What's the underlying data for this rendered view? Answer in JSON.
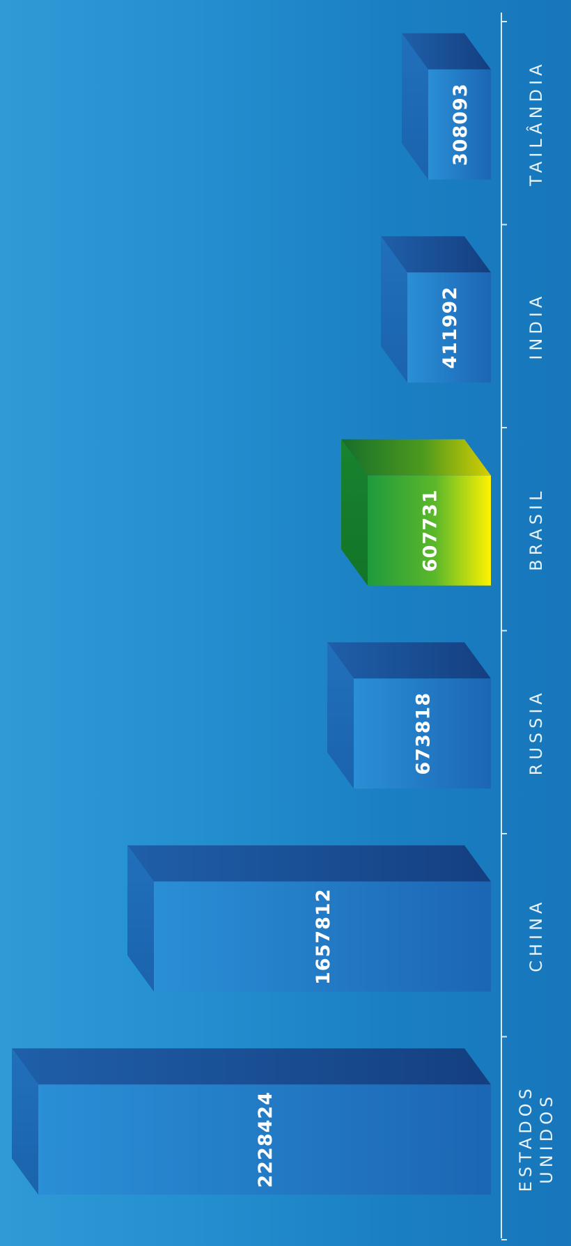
{
  "chart_data": {
    "type": "bar",
    "title": "",
    "xlabel": "",
    "ylabel": "",
    "categories": [
      "ESTADOS UNIDOS",
      "CHINA",
      "RUSSIA",
      "BRASIL",
      "INDIA",
      "TAILÂNDIA"
    ],
    "values": [
      2228424,
      1657812,
      673818,
      607731,
      411992,
      308093
    ],
    "value_labels": [
      "2228424",
      "1657812",
      "673818",
      "607731",
      "411992",
      "308093"
    ],
    "highlight_category": "BRASIL",
    "colors": {
      "bar_front_start": "#2a8fd6",
      "bar_front_end": "#1c66b4",
      "bar_top": "#1a5ba8",
      "bar_side": "#1b6cb7",
      "highlight_start": "#1e9a3c",
      "highlight_mid": "#7cc520",
      "highlight_end": "#fff200",
      "axis": "#d7ecf8"
    }
  }
}
